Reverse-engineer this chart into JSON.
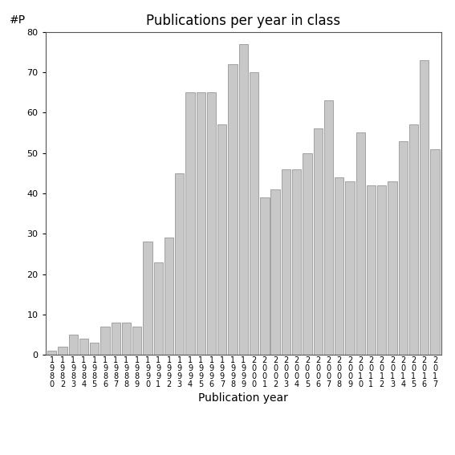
{
  "years": [
    "1980",
    "1982",
    "1983",
    "1984",
    "1985",
    "1986",
    "1987",
    "1988",
    "1989",
    "1990",
    "1991",
    "1992",
    "1993",
    "1994",
    "1995",
    "1996",
    "1997",
    "1998",
    "1999",
    "2000",
    "2001",
    "2002",
    "2003",
    "2004",
    "2005",
    "2006",
    "2007",
    "2008",
    "2009",
    "2010",
    "2011",
    "2012",
    "2013",
    "2014",
    "2015",
    "2016",
    "2017"
  ],
  "values": [
    1,
    2,
    5,
    4,
    3,
    7,
    8,
    8,
    7,
    28,
    23,
    29,
    45,
    65,
    65,
    65,
    57,
    72,
    77,
    70,
    39,
    41,
    46,
    46,
    50,
    56,
    63,
    44,
    43,
    55,
    42,
    42,
    43,
    53,
    57,
    73,
    51
  ],
  "bar_color": "#c8c8c8",
  "bar_edge_color": "#888888",
  "title": "Publications per year in class",
  "xlabel": "Publication year",
  "ylabel": "#P",
  "ylim": [
    0,
    80
  ],
  "yticks": [
    0,
    10,
    20,
    30,
    40,
    50,
    60,
    70,
    80
  ],
  "background_color": "#ffffff",
  "title_fontsize": 12,
  "label_fontsize": 10,
  "tick_fontsize": 8,
  "xtick_fontsize": 7
}
